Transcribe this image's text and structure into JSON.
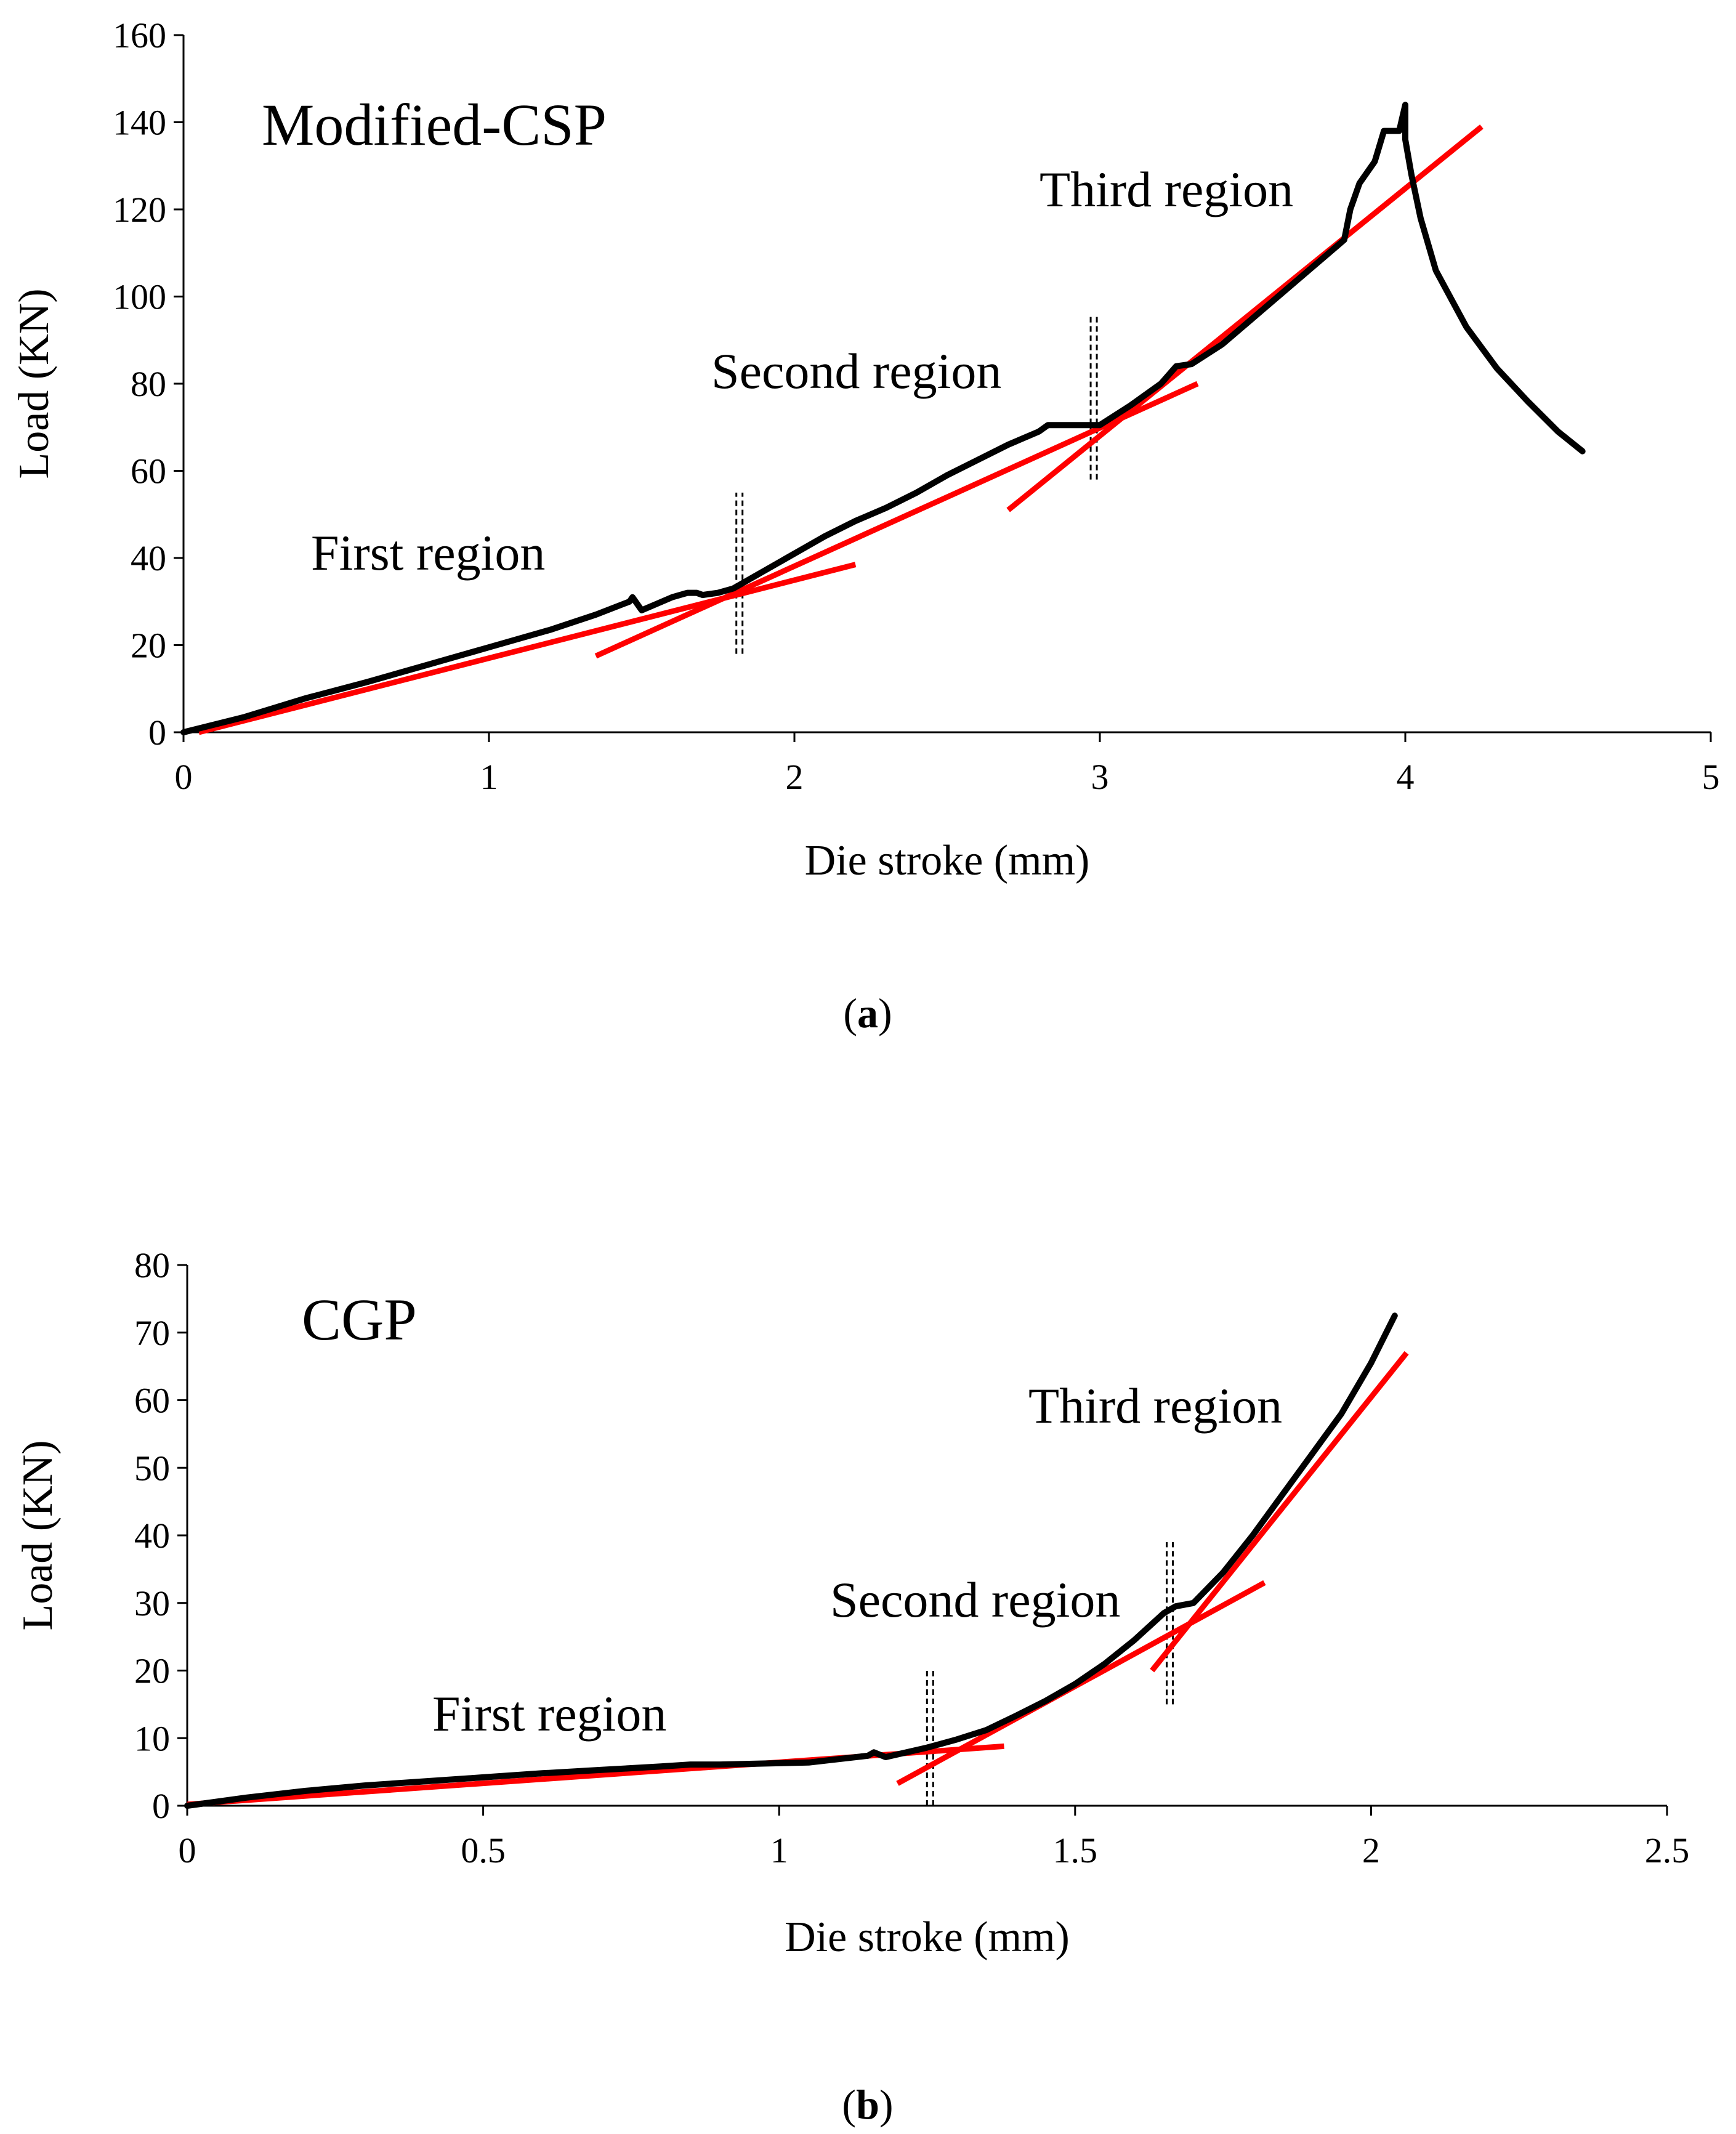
{
  "chart_data": [
    {
      "type": "line",
      "title": "Modified-CSP",
      "caption": {
        "open": "(",
        "letter": "a",
        "close": ")"
      },
      "xlabel": "Die stroke (mm)",
      "ylabel": "Load (KN)",
      "xlim": [
        0,
        5
      ],
      "ylim": [
        0,
        160
      ],
      "xticks": [
        0,
        1,
        2,
        3,
        4,
        5
      ],
      "yticks": [
        0,
        20,
        40,
        60,
        80,
        100,
        120,
        140,
        160
      ],
      "grid": false,
      "annotations": [
        {
          "text": "First region",
          "x": 0.42,
          "y": 40
        },
        {
          "text": "Second region",
          "x": 1.72,
          "y": 82
        },
        {
          "text": "Third region",
          "x": 2.8,
          "y": 123
        }
      ],
      "series": [
        {
          "name": "Load curve",
          "color": "#000000",
          "x": [
            0.0,
            0.2,
            0.4,
            0.6,
            0.8,
            1.0,
            1.2,
            1.35,
            1.46,
            1.47,
            1.5,
            1.55,
            1.6,
            1.65,
            1.68,
            1.7,
            1.75,
            1.8,
            1.9,
            2.0,
            2.1,
            2.2,
            2.3,
            2.4,
            2.5,
            2.6,
            2.7,
            2.8,
            2.83,
            3.0,
            3.1,
            3.2,
            3.25,
            3.3,
            3.4,
            3.5,
            3.6,
            3.7,
            3.8,
            3.82,
            3.85,
            3.9,
            3.93,
            3.98,
            3.99,
            4.0,
            4.0,
            4.02,
            4.05,
            4.1,
            4.2,
            4.3,
            4.4,
            4.5,
            4.58
          ],
          "y": [
            0.0,
            3.5,
            7.8,
            11.5,
            15.5,
            19.5,
            23.5,
            27.0,
            30.0,
            31.0,
            28.0,
            29.5,
            31.0,
            32.0,
            32.0,
            31.5,
            32.0,
            33.0,
            37.0,
            41.0,
            45.0,
            48.5,
            51.5,
            55.0,
            59.0,
            62.5,
            66.0,
            69.0,
            70.5,
            70.5,
            75.0,
            80.0,
            84.0,
            84.5,
            89.0,
            95.0,
            101.0,
            107.0,
            113.0,
            120.0,
            126.0,
            131.0,
            138.0,
            138.0,
            141.0,
            144.0,
            136.0,
            128.0,
            118.0,
            106.0,
            93.0,
            83.5,
            76.0,
            69.0,
            64.5
          ]
        }
      ],
      "fit_lines": [
        {
          "name": "Fit first region",
          "color": "#ff0000",
          "x": [
            0.05,
            2.2
          ],
          "y": [
            0.0,
            38.5
          ]
        },
        {
          "name": "Fit second region",
          "color": "#ff0000",
          "x": [
            1.35,
            3.32
          ],
          "y": [
            17.5,
            80.0
          ]
        },
        {
          "name": "Fit third region",
          "color": "#ff0000",
          "x": [
            2.7,
            4.25
          ],
          "y": [
            51.0,
            139.0
          ]
        }
      ],
      "region_boundaries": [
        {
          "x": 1.82,
          "y_from": 18,
          "y_to": 55
        },
        {
          "x": 2.98,
          "y_from": 58,
          "y_to": 96
        }
      ]
    },
    {
      "type": "line",
      "title": "CGP",
      "caption": {
        "open": "(",
        "letter": "b",
        "close": ")"
      },
      "xlabel": "Die stroke (mm)",
      "ylabel": "Load (KN)",
      "xlim": [
        0,
        2.5
      ],
      "ylim": [
        0,
        80
      ],
      "xticks": [
        0,
        0.5,
        1,
        1.5,
        2,
        2.5
      ],
      "yticks": [
        0,
        10,
        20,
        30,
        40,
        50,
        60,
        70,
        80
      ],
      "grid": false,
      "annotations": [
        {
          "text": "First region",
          "x": 0.42,
          "y": 12.5
        },
        {
          "text": "Second region",
          "x": 1.09,
          "y": 29.5
        },
        {
          "text": "Third region",
          "x": 1.42,
          "y": 58.5
        }
      ],
      "series": [
        {
          "name": "Load curve",
          "color": "#000000",
          "x": [
            0.0,
            0.1,
            0.2,
            0.3,
            0.4,
            0.5,
            0.6,
            0.7,
            0.8,
            0.85,
            0.9,
            1.0,
            1.05,
            1.1,
            1.15,
            1.16,
            1.18,
            1.2,
            1.25,
            1.3,
            1.35,
            1.4,
            1.45,
            1.5,
            1.55,
            1.6,
            1.65,
            1.67,
            1.7,
            1.75,
            1.8,
            1.85,
            1.9,
            1.95,
            2.0,
            2.04
          ],
          "y": [
            0.0,
            1.2,
            2.2,
            3.0,
            3.6,
            4.2,
            4.8,
            5.3,
            5.8,
            6.1,
            6.1,
            6.3,
            6.4,
            6.9,
            7.4,
            7.9,
            7.2,
            7.6,
            8.6,
            9.8,
            11.2,
            13.3,
            15.5,
            18.0,
            21.0,
            24.5,
            28.5,
            29.5,
            30.0,
            34.5,
            40.0,
            46.0,
            52.0,
            58.0,
            65.5,
            72.5
          ]
        }
      ],
      "fit_lines": [
        {
          "name": "Fit first region",
          "color": "#ff0000",
          "x": [
            0.0,
            1.38
          ],
          "y": [
            0.2,
            8.8
          ]
        },
        {
          "name": "Fit second region",
          "color": "#ff0000",
          "x": [
            1.2,
            1.82
          ],
          "y": [
            3.3,
            33.0
          ]
        },
        {
          "name": "Fit third region",
          "color": "#ff0000",
          "x": [
            1.63,
            2.06
          ],
          "y": [
            20.0,
            67.0
          ]
        }
      ],
      "region_boundaries": [
        {
          "x": 1.255,
          "y_from": 0,
          "y_to": 20
        },
        {
          "x": 1.66,
          "y_from": 15,
          "y_to": 39
        }
      ]
    }
  ]
}
